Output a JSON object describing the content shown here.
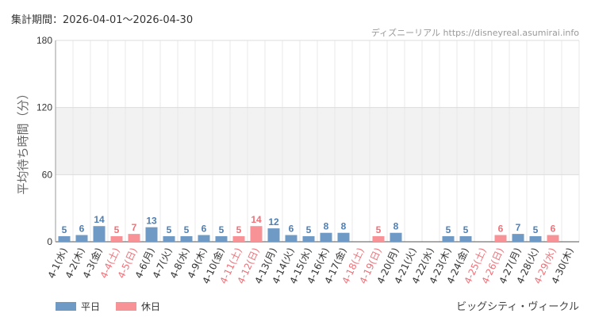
{
  "header": {
    "period": "集計期間：2026-04-01〜2026-04-30",
    "credit": "ディズニーリアル https://disneyreal.asumirai.info"
  },
  "attraction": "ビッグシティ・ヴィークル",
  "colors": {
    "weekday": "#6f9ac6",
    "holiday": "#f79397",
    "holiday_label": "#f07078",
    "weekday_label": "#4f7fb2"
  },
  "legend": [
    {
      "label": "平日",
      "kind": "weekday"
    },
    {
      "label": "休日",
      "kind": "holiday"
    }
  ],
  "chart_data": {
    "type": "bar",
    "ylabel": "平均待ち時間（分）",
    "ylim": [
      0,
      180
    ],
    "yticks": [
      0,
      60,
      120,
      180
    ],
    "grid": true,
    "legend_position": "bottom-left",
    "categories": [
      "4-1(水)",
      "4-2(木)",
      "4-3(金)",
      "4-4(土)",
      "4-5(日)",
      "4-6(月)",
      "4-7(火)",
      "4-8(水)",
      "4-9(木)",
      "4-10(金)",
      "4-11(土)",
      "4-12(日)",
      "4-13(月)",
      "4-14(火)",
      "4-15(水)",
      "4-16(木)",
      "4-17(金)",
      "4-18(土)",
      "4-19(日)",
      "4-20(月)",
      "4-21(火)",
      "4-22(水)",
      "4-23(木)",
      "4-24(金)",
      "4-25(土)",
      "4-26(日)",
      "4-27(月)",
      "4-28(火)",
      "4-29(水)",
      "4-30(木)"
    ],
    "values": [
      5,
      6,
      14,
      5,
      7,
      13,
      5,
      5,
      6,
      5,
      5,
      14,
      12,
      6,
      5,
      8,
      8,
      null,
      5,
      8,
      null,
      null,
      5,
      5,
      null,
      6,
      7,
      5,
      6,
      null
    ],
    "day_type": [
      "weekday",
      "weekday",
      "weekday",
      "holiday",
      "holiday",
      "weekday",
      "weekday",
      "weekday",
      "weekday",
      "weekday",
      "holiday",
      "holiday",
      "weekday",
      "weekday",
      "weekday",
      "weekday",
      "weekday",
      "holiday",
      "holiday",
      "weekday",
      "weekday",
      "weekday",
      "weekday",
      "weekday",
      "holiday",
      "holiday",
      "weekday",
      "weekday",
      "holiday",
      "weekday"
    ]
  }
}
